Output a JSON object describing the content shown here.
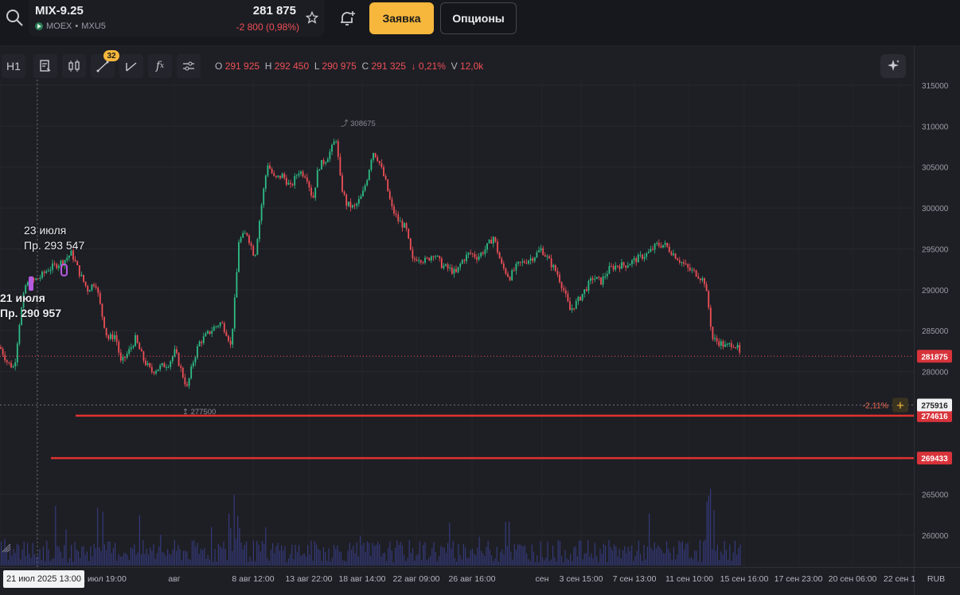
{
  "header": {
    "ticker": "MIX-9.25",
    "exchange": "MOEX",
    "code": "MXU5",
    "separator": "•",
    "price": "281 875",
    "change": "-2 800 (0,98%)",
    "order_label": "Заявка",
    "options_label": "Опционы"
  },
  "toolbar": {
    "interval": "H1",
    "badge": "32",
    "fx_label": "f",
    "fx_sub": "x"
  },
  "ohlc": {
    "o_label": "O",
    "o": "291 925",
    "h_label": "H",
    "h": "292 450",
    "l_label": "L",
    "l": "290 975",
    "c_label": "C",
    "c": "291 325",
    "chg": "0,21%",
    "v_label": "V",
    "v": "12,0k"
  },
  "annotations": {
    "a1_date": "23 июля",
    "a1_price": "Пр. 293 547",
    "a2_date": "21 июля",
    "a2_price": "Пр. 290 957",
    "max_label": "308675",
    "min_label": "277500"
  },
  "price_labels": {
    "current": "281875",
    "cursor": "275916",
    "line1": "274616",
    "line2": "269433",
    "cursor_pct": "-2,11%"
  },
  "time_axis": {
    "cursor_date": "21 июл 2025 13:00",
    "currency": "RUB",
    "ticks": [
      "1 июл 19:00",
      "авг",
      "8 авг 12:00",
      "13 авг 22:00",
      "18 авг 14:00",
      "22 авг 09:00",
      "26 авг 16:00",
      "сен",
      "3 сен 15:00",
      "7 сен 13:00",
      "11 сен 10:00",
      "15 сен 16:00",
      "17 сен 23:00",
      "20 сен 06:00",
      "22 сен 1"
    ]
  },
  "chart_data": {
    "type": "candlestick",
    "y_ticks": [
      315000,
      310000,
      305000,
      300000,
      295000,
      290000,
      285000,
      280000,
      265000,
      260000
    ],
    "ylim": [
      257500,
      317500
    ],
    "last_price": 281875,
    "horizontal_lines": [
      274616,
      269433
    ],
    "high": 308675,
    "low": 277500,
    "close_path": [
      [
        0,
        283000
      ],
      [
        10,
        281000
      ],
      [
        18,
        280500
      ],
      [
        25,
        286500
      ],
      [
        32,
        290500
      ],
      [
        40,
        291000
      ],
      [
        50,
        291500
      ],
      [
        60,
        292500
      ],
      [
        70,
        293000
      ],
      [
        80,
        293547
      ],
      [
        90,
        294500
      ],
      [
        100,
        292000
      ],
      [
        110,
        290000
      ],
      [
        120,
        291000
      ],
      [
        128,
        287000
      ],
      [
        135,
        284000
      ],
      [
        145,
        284500
      ],
      [
        152,
        281000
      ],
      [
        162,
        282500
      ],
      [
        170,
        284000
      ],
      [
        180,
        281500
      ],
      [
        190,
        280000
      ],
      [
        200,
        280500
      ],
      [
        212,
        281000
      ],
      [
        220,
        282500
      ],
      [
        228,
        280000
      ],
      [
        235,
        278000
      ],
      [
        242,
        281000
      ],
      [
        250,
        283500
      ],
      [
        260,
        284500
      ],
      [
        270,
        285500
      ],
      [
        278,
        286000
      ],
      [
        286,
        284500
      ],
      [
        290,
        283000
      ],
      [
        296,
        290000
      ],
      [
        300,
        296000
      ],
      [
        310,
        297000
      ],
      [
        320,
        294000
      ],
      [
        328,
        300000
      ],
      [
        336,
        305500
      ],
      [
        345,
        303500
      ],
      [
        355,
        304000
      ],
      [
        365,
        302500
      ],
      [
        375,
        304500
      ],
      [
        385,
        304000
      ],
      [
        393,
        301000
      ],
      [
        400,
        305000
      ],
      [
        410,
        306000
      ],
      [
        418,
        307500
      ],
      [
        422,
        308675
      ],
      [
        428,
        303000
      ],
      [
        435,
        300500
      ],
      [
        445,
        300000
      ],
      [
        455,
        301500
      ],
      [
        462,
        304000
      ],
      [
        468,
        307000
      ],
      [
        475,
        306000
      ],
      [
        485,
        303000
      ],
      [
        492,
        300000
      ],
      [
        500,
        298500
      ],
      [
        510,
        297500
      ],
      [
        518,
        293500
      ],
      [
        525,
        294000
      ],
      [
        535,
        293500
      ],
      [
        545,
        294500
      ],
      [
        555,
        293000
      ],
      [
        565,
        292500
      ],
      [
        573,
        292000
      ],
      [
        580,
        293500
      ],
      [
        590,
        294500
      ],
      [
        600,
        294000
      ],
      [
        610,
        295000
      ],
      [
        620,
        296500
      ],
      [
        630,
        293000
      ],
      [
        640,
        291500
      ],
      [
        650,
        293000
      ],
      [
        660,
        293500
      ],
      [
        670,
        294000
      ],
      [
        680,
        295000
      ],
      [
        690,
        293500
      ],
      [
        700,
        292000
      ],
      [
        708,
        290000
      ],
      [
        716,
        287500
      ],
      [
        725,
        288500
      ],
      [
        735,
        290000
      ],
      [
        745,
        291500
      ],
      [
        755,
        291000
      ],
      [
        765,
        292500
      ],
      [
        775,
        293000
      ],
      [
        785,
        293000
      ],
      [
        795,
        293500
      ],
      [
        805,
        294000
      ],
      [
        815,
        294500
      ],
      [
        825,
        295500
      ],
      [
        835,
        295500
      ],
      [
        845,
        294500
      ],
      [
        855,
        293500
      ],
      [
        865,
        292500
      ],
      [
        875,
        292000
      ],
      [
        885,
        291000
      ],
      [
        890,
        288000
      ],
      [
        895,
        284000
      ],
      [
        905,
        283500
      ],
      [
        912,
        283000
      ],
      [
        920,
        283500
      ],
      [
        926,
        283000
      ],
      [
        930,
        281875
      ]
    ]
  }
}
